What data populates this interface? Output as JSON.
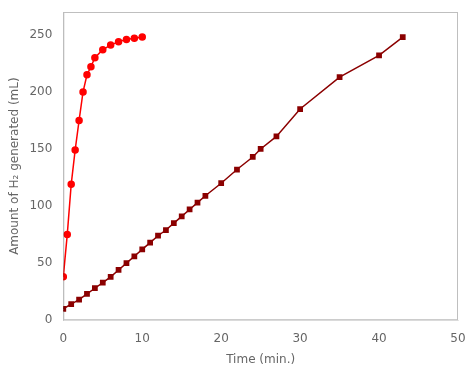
{
  "chart_data": {
    "type": "line",
    "x_label": "Time (min.)",
    "y_label": "Amount of H₂ generated (mL)",
    "xlim": [
      0,
      50
    ],
    "ylim": [
      0,
      270
    ],
    "xticks": [
      0,
      10,
      20,
      30,
      40,
      50
    ],
    "yticks": [
      0,
      50,
      100,
      150,
      200,
      250
    ],
    "grid": false,
    "series": [
      {
        "color": "#8b0000",
        "marker": "square",
        "x": [
          0,
          1,
          2,
          3,
          4,
          5,
          6,
          7,
          8,
          9,
          10,
          11,
          12,
          13,
          14,
          15,
          16,
          17,
          18,
          20,
          22,
          24,
          25,
          27,
          30,
          35,
          40,
          43
        ],
        "values": [
          10,
          14,
          18,
          23,
          28,
          33,
          38,
          44,
          50,
          56,
          62,
          68,
          74,
          79,
          85,
          91,
          97,
          103,
          109,
          120,
          132,
          143,
          150,
          161,
          185,
          213,
          232,
          248
        ]
      },
      {
        "color": "#ff0000",
        "marker": "circle",
        "x": [
          0,
          0.5,
          1,
          1.5,
          2,
          2.5,
          3,
          3.5,
          4,
          5,
          6,
          7,
          8,
          9,
          10
        ],
        "values": [
          38,
          75,
          119,
          149,
          175,
          200,
          215,
          222,
          230,
          237,
          241,
          244,
          246,
          247,
          248
        ]
      }
    ]
  }
}
